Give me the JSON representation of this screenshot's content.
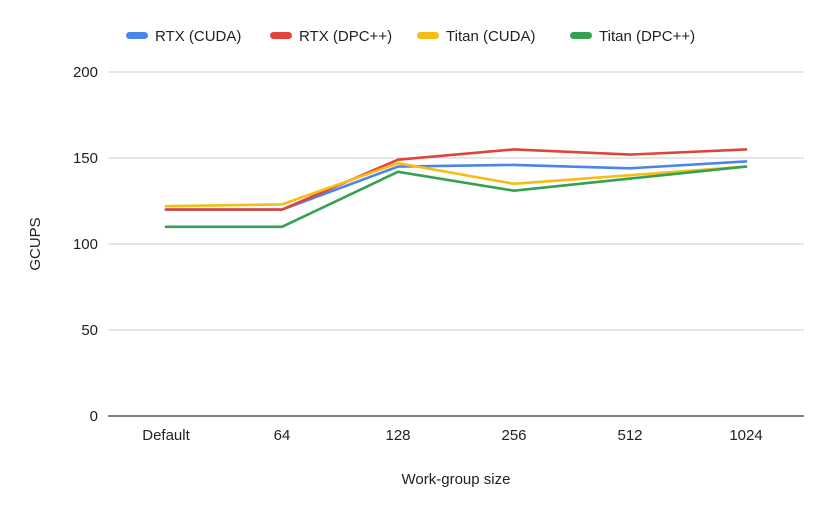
{
  "chart_data": {
    "type": "line",
    "title": "",
    "xlabel": "Work-group size",
    "ylabel": "GCUPS",
    "categories": [
      "Default",
      "64",
      "128",
      "256",
      "512",
      "1024"
    ],
    "ylim": [
      0,
      200
    ],
    "yticks": [
      0,
      50,
      100,
      150,
      200
    ],
    "grid": true,
    "legend_position": "top",
    "series": [
      {
        "name": "RTX (CUDA)",
        "color": "#4a86e8",
        "values": [
          120,
          120,
          145,
          146,
          144,
          148
        ]
      },
      {
        "name": "RTX (DPC++)",
        "color": "#e0453a",
        "values": [
          120,
          120,
          149,
          155,
          152,
          155
        ]
      },
      {
        "name": "Titan (CUDA)",
        "color": "#f6bd16",
        "values": [
          122,
          123,
          147,
          135,
          140,
          145
        ]
      },
      {
        "name": "Titan (DPC++)",
        "color": "#35a153",
        "values": [
          110,
          110,
          142,
          131,
          138,
          145
        ]
      }
    ]
  }
}
